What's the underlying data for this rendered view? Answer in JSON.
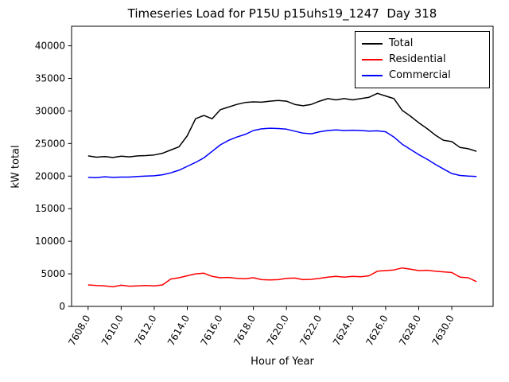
{
  "chart_data": {
    "type": "line",
    "title": "Timeseries Load for P15U p15uhs19_1247  Day 318",
    "xlabel": "Hour of Year",
    "ylabel": "kW total",
    "grid": false,
    "legend_position": "upper right",
    "xlim": [
      7607.0,
      7632.5
    ],
    "ylim": [
      0,
      43000
    ],
    "x_ticks": [
      7608,
      7610,
      7612,
      7614,
      7616,
      7618,
      7620,
      7622,
      7624,
      7626,
      7628,
      7630
    ],
    "x_tick_labels": [
      "7608.0",
      "7610.0",
      "7612.0",
      "7614.0",
      "7616.0",
      "7618.0",
      "7620.0",
      "7622.0",
      "7624.0",
      "7626.0",
      "7628.0",
      "7630.0"
    ],
    "y_ticks": [
      0,
      5000,
      10000,
      15000,
      20000,
      25000,
      30000,
      35000,
      40000
    ],
    "y_tick_labels": [
      "0",
      "5000",
      "10000",
      "15000",
      "20000",
      "25000",
      "30000",
      "35000",
      "40000"
    ],
    "x": [
      7608.0,
      7608.5,
      7609.0,
      7609.5,
      7610.0,
      7610.5,
      7611.0,
      7611.5,
      7612.0,
      7612.5,
      7613.0,
      7613.5,
      7614.0,
      7614.5,
      7615.0,
      7615.5,
      7616.0,
      7616.5,
      7617.0,
      7617.5,
      7618.0,
      7618.5,
      7619.0,
      7619.5,
      7620.0,
      7620.5,
      7621.0,
      7621.5,
      7622.0,
      7622.5,
      7623.0,
      7623.5,
      7624.0,
      7624.5,
      7625.0,
      7625.5,
      7626.0,
      7626.5,
      7627.0,
      7627.5,
      7628.0,
      7628.5,
      7629.0,
      7629.5,
      7630.0,
      7630.5,
      7631.0,
      7631.5
    ],
    "series": [
      {
        "name": "Total",
        "color": "#000000",
        "values": [
          23100,
          22900,
          23000,
          22850,
          23050,
          22950,
          23100,
          23150,
          23250,
          23500,
          24000,
          24500,
          26200,
          28800,
          29300,
          28800,
          30200,
          30600,
          31000,
          31300,
          31400,
          31350,
          31500,
          31600,
          31500,
          31000,
          30800,
          31000,
          31500,
          31900,
          31700,
          31900,
          31700,
          31900,
          32100,
          32700,
          32300,
          31900,
          30100,
          29200,
          28200,
          27300,
          26300,
          25500,
          25300,
          24400,
          24200,
          23800
        ]
      },
      {
        "name": "Residential",
        "color": "#ff0000",
        "values": [
          3300,
          3200,
          3150,
          3000,
          3250,
          3100,
          3150,
          3200,
          3150,
          3300,
          4200,
          4400,
          4700,
          5000,
          5100,
          4600,
          4400,
          4450,
          4300,
          4250,
          4400,
          4100,
          4050,
          4100,
          4300,
          4350,
          4100,
          4150,
          4300,
          4500,
          4600,
          4500,
          4600,
          4550,
          4700,
          5400,
          5500,
          5600,
          5900,
          5700,
          5500,
          5550,
          5400,
          5300,
          5200,
          4500,
          4400,
          3800
        ]
      },
      {
        "name": "Commercial",
        "color": "#0000ff",
        "values": [
          19800,
          19750,
          19900,
          19800,
          19850,
          19850,
          19950,
          20000,
          20050,
          20200,
          20500,
          20900,
          21500,
          22100,
          22800,
          23800,
          24800,
          25500,
          26000,
          26400,
          27000,
          27250,
          27350,
          27300,
          27200,
          26900,
          26600,
          26500,
          26800,
          27000,
          27100,
          27000,
          27050,
          27000,
          26900,
          26950,
          26800,
          26000,
          24900,
          24100,
          23300,
          22600,
          21800,
          21100,
          20400,
          20100,
          20000,
          19950
        ]
      }
    ],
    "colors": {
      "axis": "#000000",
      "background": "#ffffff",
      "total": "#000000",
      "residential": "#ff0000",
      "commercial": "#0000ff"
    }
  }
}
